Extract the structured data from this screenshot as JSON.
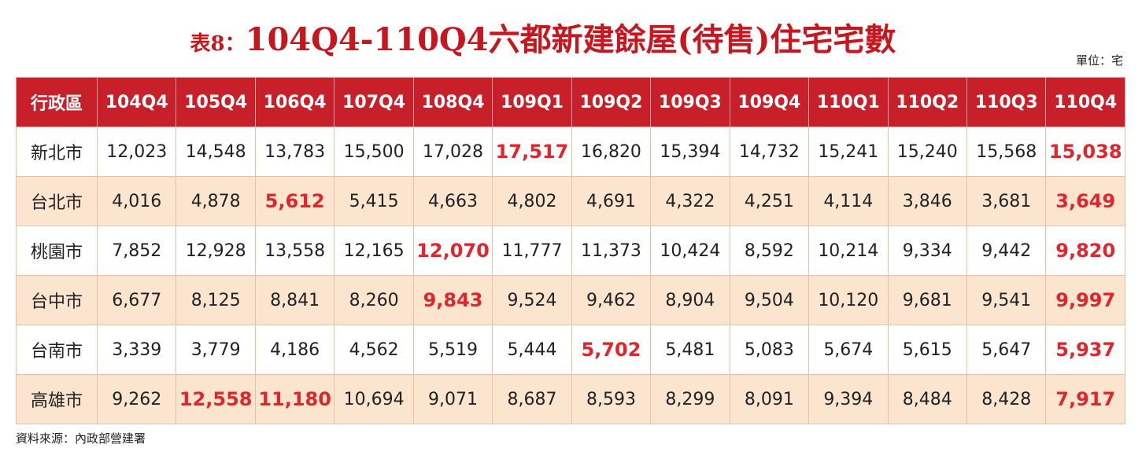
{
  "header": {
    "prefix": "表8：",
    "title": "104Q4-110Q4六都新建餘屋(待售)住宅宅數",
    "unit": "單位：宅"
  },
  "table": {
    "columns": [
      "行政區",
      "104Q4",
      "105Q4",
      "106Q4",
      "107Q4",
      "108Q4",
      "109Q1",
      "109Q2",
      "109Q3",
      "109Q4",
      "110Q1",
      "110Q2",
      "110Q3",
      "110Q4"
    ],
    "rows": [
      [
        "新北市",
        "12,023",
        "14,548",
        "13,783",
        "15,500",
        "17,028",
        "17,517",
        "16,820",
        "15,394",
        "14,732",
        "15,241",
        "15,240",
        "15,568",
        "15,038"
      ],
      [
        "台北市",
        "4,016",
        "4,878",
        "5,612",
        "5,415",
        "4,663",
        "4,802",
        "4,691",
        "4,322",
        "4,251",
        "4,114",
        "3,846",
        "3,681",
        "3,649"
      ],
      [
        "桃園市",
        "7,852",
        "12,928",
        "13,558",
        "12,165",
        "12,070",
        "11,777",
        "11,373",
        "10,424",
        "8,592",
        "10,214",
        "9,334",
        "9,442",
        "9,820"
      ],
      [
        "台中市",
        "6,677",
        "8,125",
        "8,841",
        "8,260",
        "9,843",
        "9,524",
        "9,462",
        "8,904",
        "9,504",
        "10,120",
        "9,681",
        "9,541",
        "9,997"
      ],
      [
        "台南市",
        "3,339",
        "3,779",
        "4,186",
        "4,562",
        "5,519",
        "5,444",
        "5,702",
        "5,481",
        "5,083",
        "5,674",
        "5,615",
        "5,647",
        "5,937"
      ],
      [
        "高雄市",
        "9,262",
        "12,558",
        "11,180",
        "10,694",
        "9,071",
        "8,687",
        "8,593",
        "8,299",
        "8,091",
        "9,394",
        "8,484",
        "8,428",
        "7,917"
      ]
    ]
  },
  "footer": {
    "source": "資料來源：內政部營建署"
  }
}
